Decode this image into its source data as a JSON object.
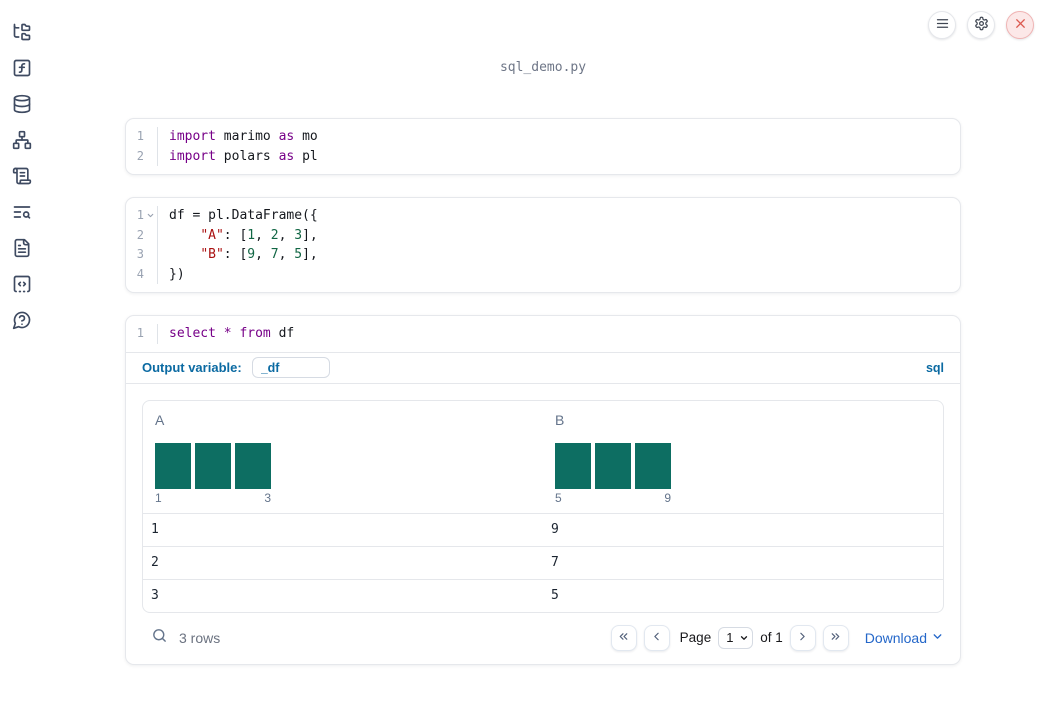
{
  "app": {
    "title": "sql_demo.py"
  },
  "topbar": {
    "buttons": [
      {
        "icon": "menu-icon",
        "name": "notebook-menu"
      },
      {
        "icon": "gear-icon",
        "name": "settings"
      },
      {
        "icon": "close-icon",
        "name": "shutdown"
      }
    ]
  },
  "sidebar": {
    "icons": [
      "file-explorer",
      "functions",
      "datasources",
      "dependency-graph",
      "logs",
      "search-list",
      "documentation",
      "snippets",
      "help-chat"
    ]
  },
  "cells": [
    {
      "name": "imports",
      "lines": [
        {
          "n": "1",
          "t": [
            [
              "k",
              "import"
            ],
            [
              "p",
              " marimo "
            ],
            [
              "k",
              "as"
            ],
            [
              "p",
              " mo"
            ]
          ]
        },
        {
          "n": "2",
          "t": [
            [
              "k",
              "import"
            ],
            [
              "p",
              " polars "
            ],
            [
              "k",
              "as"
            ],
            [
              "p",
              " pl"
            ]
          ]
        }
      ]
    },
    {
      "name": "dataframe",
      "lines": [
        {
          "n": "1",
          "fold": true,
          "t": [
            [
              "p",
              "df = pl.DataFrame({"
            ]
          ]
        },
        {
          "n": "2",
          "t": [
            [
              "p",
              "    "
            ],
            [
              "s",
              "\"A\""
            ],
            [
              "p",
              ": ["
            ],
            [
              "m",
              "1"
            ],
            [
              "p",
              ", "
            ],
            [
              "m",
              "2"
            ],
            [
              "p",
              ", "
            ],
            [
              "m",
              "3"
            ],
            [
              "p",
              "],"
            ]
          ]
        },
        {
          "n": "3",
          "t": [
            [
              "p",
              "    "
            ],
            [
              "s",
              "\"B\""
            ],
            [
              "p",
              ": ["
            ],
            [
              "m",
              "9"
            ],
            [
              "p",
              ", "
            ],
            [
              "m",
              "7"
            ],
            [
              "p",
              ", "
            ],
            [
              "m",
              "5"
            ],
            [
              "p",
              "],"
            ]
          ]
        },
        {
          "n": "4",
          "t": [
            [
              "p",
              "})"
            ]
          ]
        }
      ]
    },
    {
      "name": "sql",
      "lines": [
        {
          "n": "1",
          "t": [
            [
              "k",
              "select"
            ],
            [
              "p",
              " "
            ],
            [
              "k",
              "*"
            ],
            [
              "p",
              " "
            ],
            [
              "k",
              "from"
            ],
            [
              "p",
              " df"
            ]
          ]
        }
      ]
    }
  ],
  "sql_panel": {
    "output_variable_label": "Output variable:",
    "output_variable_value": "_df",
    "language_badge": "sql"
  },
  "table": {
    "columns": [
      {
        "name": "A",
        "histogram": {
          "bar_heights": [
            1,
            1,
            1
          ],
          "min_label": "1",
          "max_label": "3"
        }
      },
      {
        "name": "B",
        "histogram": {
          "bar_heights": [
            1,
            1,
            1
          ],
          "min_label": "5",
          "max_label": "9"
        }
      }
    ],
    "rows": [
      [
        "1",
        "9"
      ],
      [
        "2",
        "7"
      ],
      [
        "3",
        "5"
      ]
    ],
    "footer": {
      "row_count": "3 rows",
      "page_label": "Page",
      "page_options": [
        "1"
      ],
      "page_value": "1",
      "page_total_label": "of 1",
      "download_label": "Download"
    }
  },
  "colors": {
    "keyword": "#770088",
    "string": "#aa1111",
    "number": "#116644",
    "accent": "#0b6aa2",
    "link": "#2467c9",
    "bar": "#0d6e62",
    "close_red": "#dc5a50"
  }
}
